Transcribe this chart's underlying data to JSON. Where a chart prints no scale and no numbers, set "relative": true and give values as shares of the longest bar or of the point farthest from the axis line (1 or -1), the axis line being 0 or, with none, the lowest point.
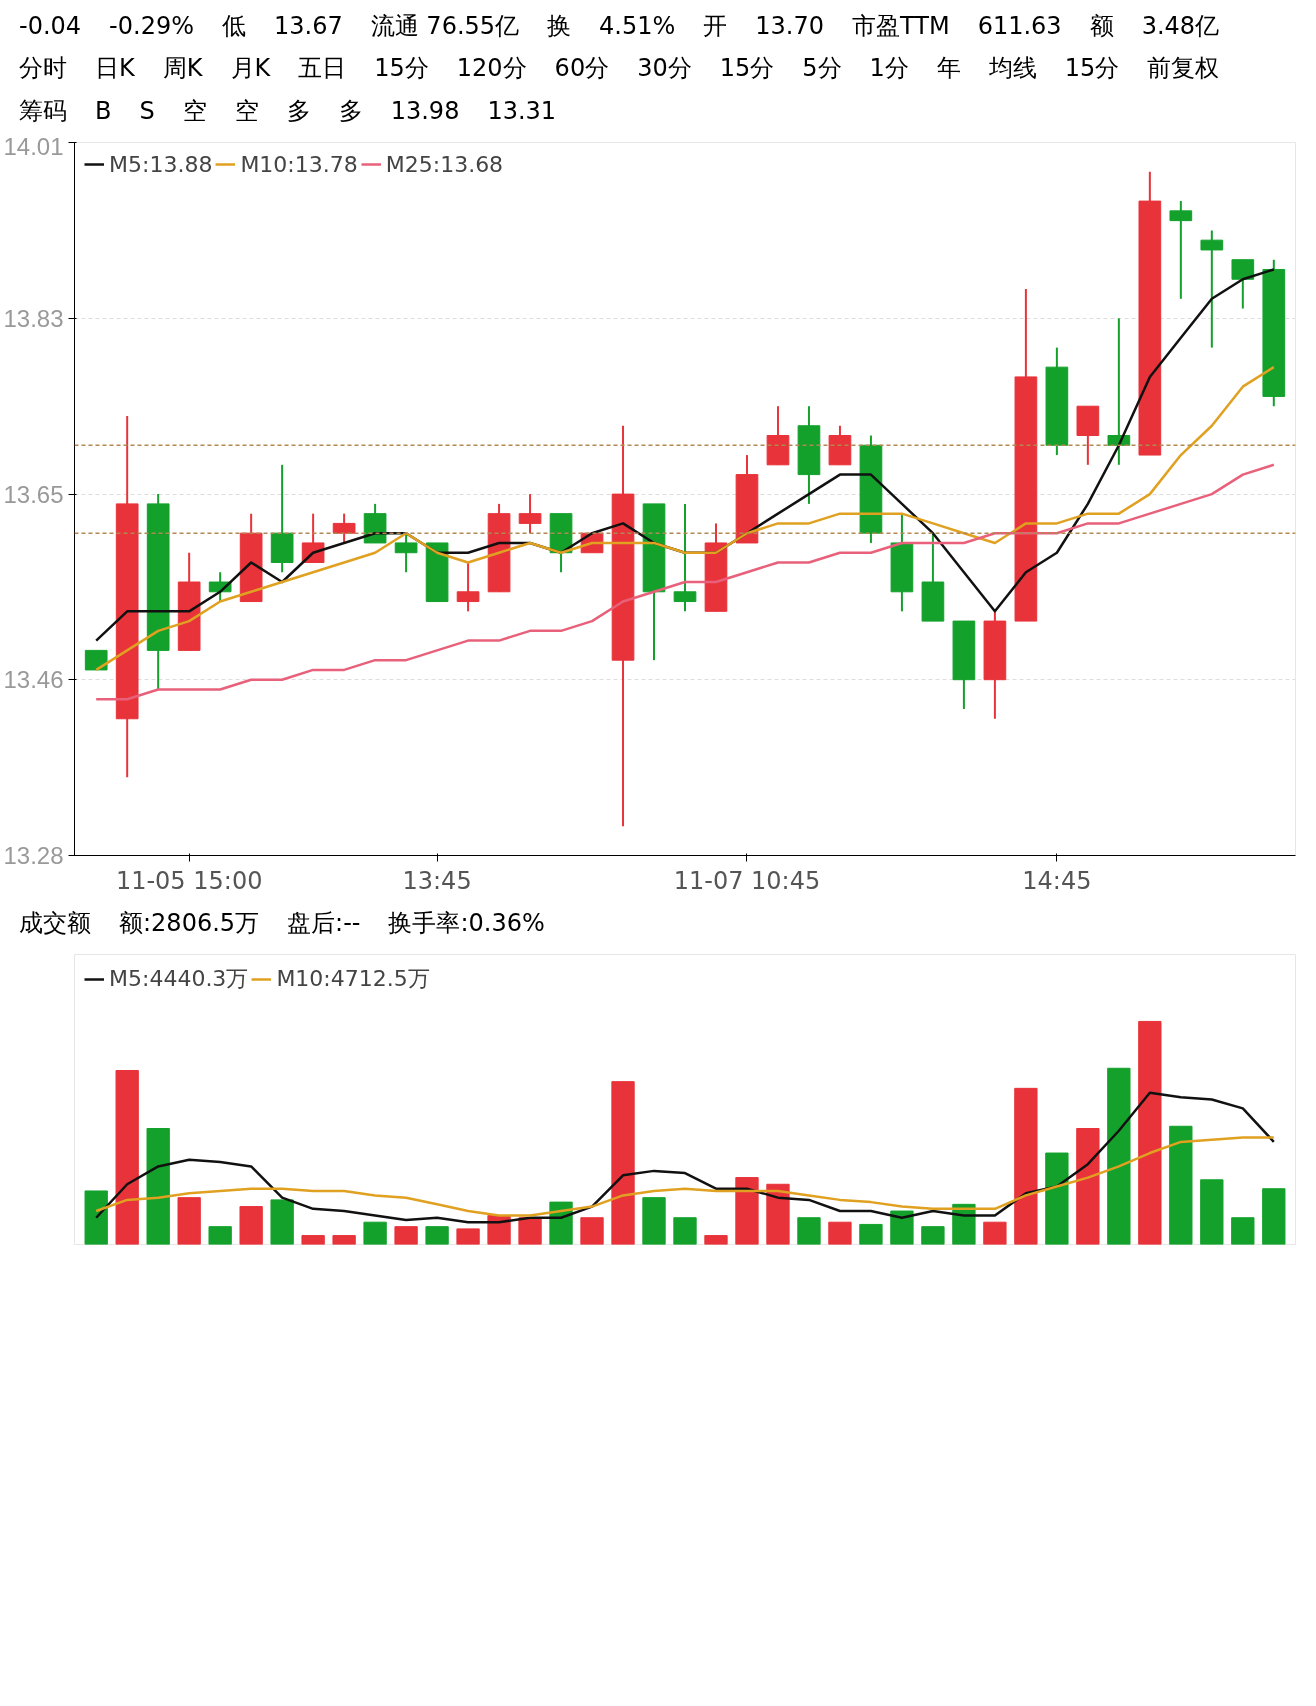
{
  "chart_data": [
    {
      "type": "candlestick",
      "annotations": [
        "-0.04",
        "-0.29%",
        "低",
        "13.67",
        "流通 76.55亿",
        "换",
        "4.51%",
        "开",
        "13.70",
        "市盈TTM",
        "611.63",
        "额",
        "3.48亿",
        "分时",
        "日K",
        "周K",
        "月K",
        "五日",
        "15分",
        "120分",
        "60分",
        "30分",
        "15分",
        "5分",
        "1分",
        "年",
        "均线",
        "15分",
        "前复权",
        "筹码",
        "B",
        "S",
        "空",
        "空",
        "多",
        "多",
        "13.98",
        "13.31"
      ],
      "categories": [
        null,
        null,
        null,
        "11-05 15:00",
        null,
        null,
        null,
        null,
        null,
        null,
        null,
        "13:45",
        null,
        null,
        null,
        null,
        null,
        null,
        null,
        null,
        null,
        "11-07 10:45",
        null,
        null,
        null,
        null,
        null,
        null,
        null,
        null,
        null,
        "14:45",
        null,
        null,
        null,
        null,
        null,
        null,
        null
      ],
      "ohlc": [
        [
          13.49,
          13.49,
          13.47,
          13.47
        ],
        [
          13.42,
          13.73,
          13.36,
          13.64
        ],
        [
          13.64,
          13.65,
          13.45,
          13.49
        ],
        [
          13.49,
          13.59,
          13.49,
          13.56
        ],
        [
          13.56,
          13.57,
          13.54,
          13.55
        ],
        [
          13.54,
          13.63,
          13.54,
          13.61
        ],
        [
          13.61,
          13.68,
          13.57,
          13.58
        ],
        [
          13.58,
          13.63,
          13.58,
          13.6
        ],
        [
          13.61,
          13.63,
          13.6,
          13.62
        ],
        [
          13.63,
          13.64,
          13.6,
          13.6
        ],
        [
          13.6,
          13.61,
          13.57,
          13.59
        ],
        [
          13.6,
          13.6,
          13.54,
          13.54
        ],
        [
          13.54,
          13.58,
          13.53,
          13.55
        ],
        [
          13.55,
          13.64,
          13.55,
          13.63
        ],
        [
          13.62,
          13.65,
          13.61,
          13.63
        ],
        [
          13.63,
          13.63,
          13.57,
          13.59
        ],
        [
          13.59,
          13.61,
          13.59,
          13.61
        ],
        [
          13.48,
          13.72,
          13.31,
          13.65
        ],
        [
          13.64,
          13.64,
          13.48,
          13.55
        ],
        [
          13.55,
          13.64,
          13.53,
          13.54
        ],
        [
          13.53,
          13.62,
          13.53,
          13.6
        ],
        [
          13.6,
          13.69,
          13.6,
          13.67
        ],
        [
          13.68,
          13.74,
          13.68,
          13.71
        ],
        [
          13.72,
          13.74,
          13.64,
          13.67
        ],
        [
          13.68,
          13.72,
          13.68,
          13.71
        ],
        [
          13.7,
          13.71,
          13.6,
          13.61
        ],
        [
          13.6,
          13.63,
          13.53,
          13.55
        ],
        [
          13.56,
          13.61,
          13.52,
          13.52
        ],
        [
          13.52,
          13.52,
          13.43,
          13.46
        ],
        [
          13.46,
          13.53,
          13.42,
          13.52
        ],
        [
          13.52,
          13.86,
          13.52,
          13.77
        ],
        [
          13.78,
          13.8,
          13.69,
          13.7
        ],
        [
          13.71,
          13.74,
          13.68,
          13.74
        ],
        [
          13.71,
          13.83,
          13.68,
          13.7
        ],
        [
          13.69,
          13.98,
          13.69,
          13.95
        ],
        [
          13.94,
          13.95,
          13.85,
          13.93
        ],
        [
          13.91,
          13.92,
          13.8,
          13.9
        ],
        [
          13.89,
          13.89,
          13.84,
          13.87
        ],
        [
          13.88,
          13.89,
          13.74,
          13.75
        ]
      ],
      "colors": [
        "#13a12c",
        "#e8333a",
        "#13a12c",
        "#e8333a",
        "#13a12c",
        "#e8333a",
        "#13a12c",
        "#e8333a",
        "#e8333a",
        "#13a12c",
        "#13a12c",
        "#13a12c",
        "#e8333a",
        "#e8333a",
        "#e8333a",
        "#13a12c",
        "#e8333a",
        "#e8333a",
        "#13a12c",
        "#13a12c",
        "#e8333a",
        "#e8333a",
        "#e8333a",
        "#13a12c",
        "#e8333a",
        "#13a12c",
        "#13a12c",
        "#13a12c",
        "#13a12c",
        "#e8333a",
        "#e8333a",
        "#13a12c",
        "#e8333a",
        "#13a12c",
        "#e8333a",
        "#13a12c",
        "#13a12c",
        "#13a12c",
        "#13a12c"
      ],
      "series": [
        {
          "type": "line",
          "name": "M5:13.88",
          "color": "#111111",
          "values": [
            13.5,
            13.53,
            13.53,
            13.53,
            13.55,
            13.58,
            13.56,
            13.59,
            13.6,
            13.61,
            13.61,
            13.59,
            13.59,
            13.6,
            13.6,
            13.59,
            13.61,
            13.62,
            13.6,
            13.59,
            13.59,
            13.61,
            13.63,
            13.65,
            13.67,
            13.67,
            13.64,
            13.61,
            13.57,
            13.53,
            13.57,
            13.59,
            13.64,
            13.7,
            13.77,
            13.81,
            13.85,
            13.87,
            13.88
          ]
        },
        {
          "type": "line",
          "name": "M10:13.78",
          "color": "#e0a020",
          "values": [
            13.47,
            13.49,
            13.51,
            13.52,
            13.54,
            13.55,
            13.56,
            13.57,
            13.58,
            13.59,
            13.61,
            13.59,
            13.58,
            13.59,
            13.6,
            13.59,
            13.6,
            13.6,
            13.6,
            13.59,
            13.59,
            13.61,
            13.62,
            13.62,
            13.63,
            13.63,
            13.63,
            13.62,
            13.61,
            13.6,
            13.62,
            13.62,
            13.63,
            13.63,
            13.65,
            13.69,
            13.72,
            13.76,
            13.78
          ]
        },
        {
          "type": "line",
          "name": "M25:13.68",
          "color": "#e8607a",
          "values": [
            13.44,
            13.44,
            13.45,
            13.45,
            13.45,
            13.46,
            13.46,
            13.47,
            13.47,
            13.48,
            13.48,
            13.49,
            13.5,
            13.5,
            13.51,
            13.51,
            13.52,
            13.54,
            13.55,
            13.56,
            13.56,
            13.57,
            13.58,
            13.58,
            13.59,
            13.59,
            13.6,
            13.6,
            13.6,
            13.61,
            13.61,
            13.61,
            13.62,
            13.62,
            13.63,
            13.64,
            13.65,
            13.67,
            13.68
          ]
        }
      ],
      "legend": "top left",
      "ylim": [
        13.28,
        14.01
      ],
      "yticks": [
        14.01,
        13.83,
        13.65,
        13.46,
        13.28
      ],
      "grid": "y",
      "ref_lines": [
        {
          "axis": "y",
          "value": 13.7,
          "color": "#b08850",
          "line_style": "dashed"
        },
        {
          "axis": "y",
          "value": 13.61,
          "color": "#b08850",
          "line_style": "dashed"
        }
      ]
    },
    {
      "type": "bar",
      "relative": true,
      "annotations": [
        "成交额",
        "额:2806.5万",
        "盘后:--",
        "换手率:0.36%"
      ],
      "categories": [
        null,
        null,
        null,
        null,
        null,
        null,
        null,
        null,
        null,
        null,
        null,
        null,
        null,
        null,
        null,
        null,
        null,
        null,
        null,
        null,
        null,
        null,
        null,
        null,
        null,
        null,
        null,
        null,
        null,
        null,
        null,
        null,
        null,
        null,
        null,
        null,
        null,
        null,
        null
      ],
      "series": [
        {
          "type": "bar",
          "colors": [
            "#13a12c",
            "#e8333a",
            "#13a12c",
            "#e8333a",
            "#13a12c",
            "#e8333a",
            "#13a12c",
            "#e8333a",
            "#e8333a",
            "#13a12c",
            "#e8333a",
            "#13a12c",
            "#e8333a",
            "#e8333a",
            "#e8333a",
            "#13a12c",
            "#e8333a",
            "#e8333a",
            "#13a12c",
            "#13a12c",
            "#e8333a",
            "#e8333a",
            "#e8333a",
            "#13a12c",
            "#e8333a",
            "#13a12c",
            "#13a12c",
            "#13a12c",
            "#13a12c",
            "#e8333a",
            "#e8333a",
            "#13a12c",
            "#e8333a",
            "#13a12c",
            "#e8333a",
            "#13a12c",
            "#13a12c",
            "#13a12c",
            "#13a12c"
          ],
          "values": [
            0.24,
            0.78,
            0.52,
            0.21,
            0.08,
            0.17,
            0.2,
            0.04,
            0.04,
            0.1,
            0.08,
            0.08,
            0.07,
            0.13,
            0.12,
            0.19,
            0.12,
            0.73,
            0.21,
            0.12,
            0.04,
            0.3,
            0.27,
            0.12,
            0.1,
            0.09,
            0.15,
            0.08,
            0.18,
            0.1,
            0.7,
            0.41,
            0.52,
            0.79,
            1,
            0.53,
            0.29,
            0.12,
            0.25
          ]
        },
        {
          "type": "line",
          "name": "M5:4440.3万",
          "color": "#111111",
          "values": [
            0.12,
            0.27,
            0.35,
            0.38,
            0.37,
            0.35,
            0.21,
            0.16,
            0.15,
            0.13,
            0.11,
            0.12,
            0.1,
            0.1,
            0.12,
            0.12,
            0.17,
            0.31,
            0.33,
            0.32,
            0.25,
            0.25,
            0.21,
            0.2,
            0.15,
            0.15,
            0.12,
            0.15,
            0.13,
            0.13,
            0.23,
            0.26,
            0.36,
            0.51,
            0.68,
            0.66,
            0.65,
            0.61,
            0.46
          ]
        },
        {
          "type": "line",
          "name": "M10:4712.5万",
          "color": "#e0a020",
          "values": [
            0.15,
            0.2,
            0.21,
            0.23,
            0.24,
            0.25,
            0.25,
            0.24,
            0.24,
            0.22,
            0.21,
            0.18,
            0.15,
            0.13,
            0.13,
            0.15,
            0.17,
            0.22,
            0.24,
            0.25,
            0.24,
            0.24,
            0.24,
            0.22,
            0.2,
            0.19,
            0.17,
            0.16,
            0.16,
            0.16,
            0.22,
            0.26,
            0.3,
            0.35,
            0.41,
            0.46,
            0.47,
            0.48,
            0.48
          ]
        }
      ],
      "legend": "top left"
    }
  ]
}
